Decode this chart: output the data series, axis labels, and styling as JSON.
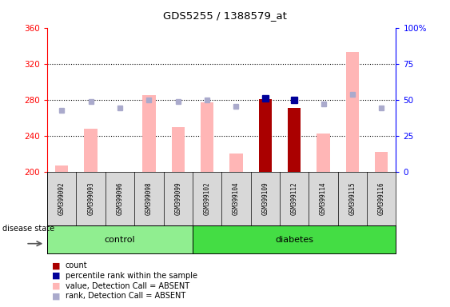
{
  "title": "GDS5255 / 1388579_at",
  "samples": [
    "GSM399092",
    "GSM399093",
    "GSM399096",
    "GSM399098",
    "GSM399099",
    "GSM399102",
    "GSM399104",
    "GSM399109",
    "GSM399112",
    "GSM399114",
    "GSM399115",
    "GSM399116"
  ],
  "groups": [
    "control",
    "control",
    "control",
    "control",
    "control",
    "diabetes",
    "diabetes",
    "diabetes",
    "diabetes",
    "diabetes",
    "diabetes",
    "diabetes"
  ],
  "value_absent": [
    207,
    248,
    200,
    285,
    250,
    277,
    220,
    null,
    null,
    243,
    333,
    222
  ],
  "rank_absent": [
    268,
    278,
    271,
    280,
    278,
    280,
    273,
    null,
    null,
    275,
    286,
    271
  ],
  "count_value": [
    null,
    null,
    null,
    null,
    null,
    null,
    null,
    281,
    271,
    null,
    null,
    null
  ],
  "count_pct": [
    null,
    null,
    null,
    null,
    null,
    null,
    null,
    51,
    50,
    null,
    null,
    null
  ],
  "ylim_left": [
    200,
    360
  ],
  "ylim_right": [
    0,
    100
  ],
  "yticks_left": [
    200,
    240,
    280,
    320,
    360
  ],
  "yticks_right": [
    0,
    25,
    50,
    75,
    100
  ],
  "bg_color": "#d8d8d8",
  "control_color": "#90ee90",
  "diabetes_color": "#44dd44",
  "pink_color": "#ffb6b6",
  "light_blue_color": "#aaaacc",
  "dark_red_color": "#aa0000",
  "dark_blue_color": "#000099",
  "label_control": "control",
  "label_diabetes": "diabetes",
  "n_control": 5,
  "n_diabetes": 7
}
